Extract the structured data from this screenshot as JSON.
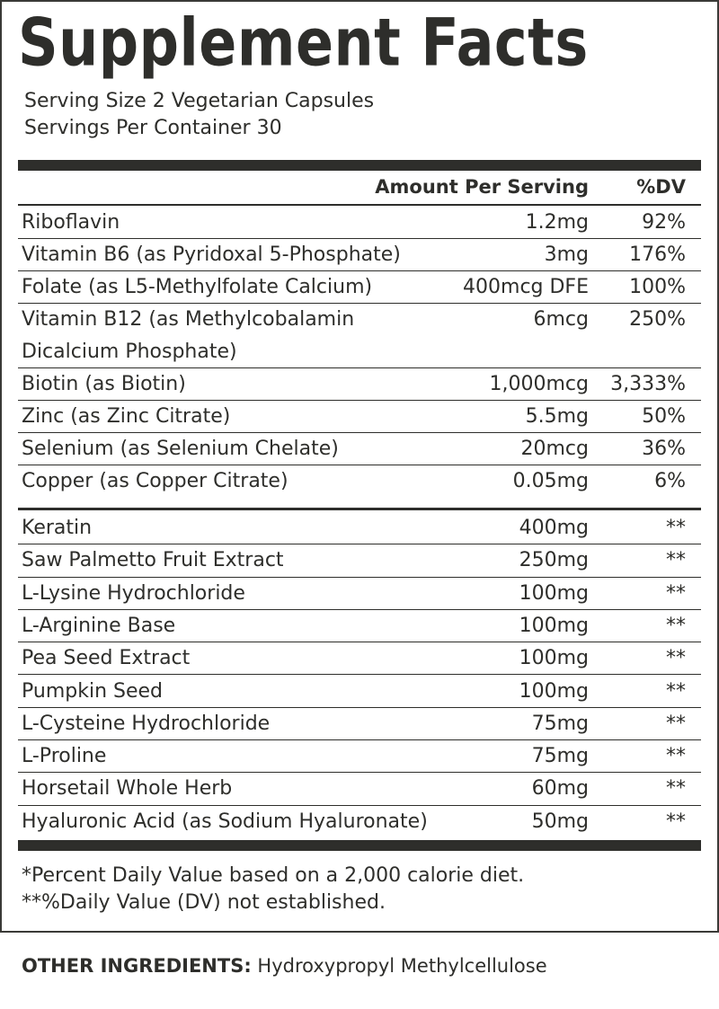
{
  "title": "Supplement Facts",
  "serving_size": "Serving Size 2 Vegetarian Capsules",
  "servings_per_container": "Servings Per Container 30",
  "header": {
    "amount": "Amount Per Serving",
    "dv": "%DV"
  },
  "group1": [
    {
      "name": "Riboflavin",
      "amount": "1.2mg",
      "dv": "92%"
    },
    {
      "name": "Vitamin B6 (as Pyridoxal 5-Phosphate)",
      "amount": "3mg",
      "dv": "176%"
    },
    {
      "name": "Folate (as L5-Methylfolate Calcium)",
      "amount": "400mcg DFE",
      "dv": "100%"
    },
    {
      "name": "Vitamin B12 (as Methylcobalamin",
      "name2": "Dicalcium Phosphate)",
      "amount": "6mcg",
      "dv": "250%"
    },
    {
      "name": "Biotin (as Biotin)",
      "amount": "1,000mcg",
      "dv": "3,333%"
    },
    {
      "name": "Zinc (as Zinc Citrate)",
      "amount": "5.5mg",
      "dv": "50%"
    },
    {
      "name": "Selenium (as Selenium Chelate)",
      "amount": "20mcg",
      "dv": "36%"
    },
    {
      "name": "Copper (as Copper Citrate)",
      "amount": "0.05mg",
      "dv": "6%"
    }
  ],
  "group2": [
    {
      "name": "Keratin",
      "amount": "400mg",
      "dv": "**"
    },
    {
      "name": "Saw Palmetto Fruit Extract",
      "amount": "250mg",
      "dv": "**"
    },
    {
      "name": "L-Lysine Hydrochloride",
      "amount": "100mg",
      "dv": "**"
    },
    {
      "name": "L-Arginine Base",
      "amount": "100mg",
      "dv": "**"
    },
    {
      "name": "Pea Seed Extract",
      "amount": "100mg",
      "dv": "**"
    },
    {
      "name": "Pumpkin Seed",
      "amount": "100mg",
      "dv": "**"
    },
    {
      "name": "L-Cysteine Hydrochloride",
      "amount": "75mg",
      "dv": "**"
    },
    {
      "name": "L-Proline",
      "amount": "75mg",
      "dv": "**"
    },
    {
      "name": "Horsetail Whole Herb",
      "amount": "60mg",
      "dv": "**"
    },
    {
      "name": "Hyaluronic Acid (as Sodium Hyaluronate)",
      "amount": "50mg",
      "dv": "**"
    }
  ],
  "footnotes": [
    "*Percent Daily Value based on a 2,000 calorie diet.",
    "**%Daily Value (DV) not established."
  ],
  "other_ingredients": {
    "label": "OTHER INGREDIENTS:",
    "value": " Hydroxypropyl Methylcellulose"
  },
  "colors": {
    "ink": "#2e2e2b",
    "background": "#ffffff"
  }
}
